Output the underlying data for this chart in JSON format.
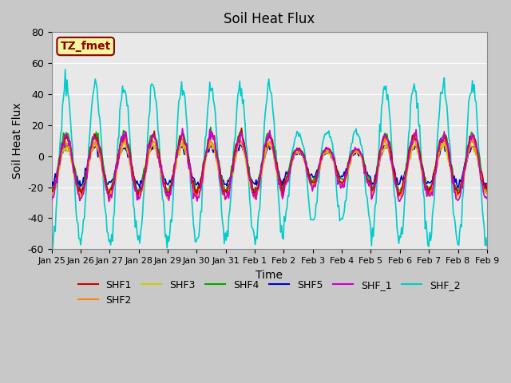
{
  "title": "Soil Heat Flux",
  "xlabel": "Time",
  "ylabel": "Soil Heat Flux",
  "ylim": [
    -60,
    80
  ],
  "yticks": [
    -60,
    -40,
    -20,
    0,
    20,
    40,
    60,
    80
  ],
  "fig_bg_color": "#c8c8c8",
  "plot_bg_color": "#e8e8e8",
  "annotation_text": "TZ_fmet",
  "annotation_bg": "#f5f5a0",
  "annotation_border": "#8b0000",
  "annotation_text_color": "#8b0000",
  "series_colors": {
    "SHF1": "#cc0000",
    "SHF2": "#ff8800",
    "SHF3": "#cccc00",
    "SHF4": "#00aa00",
    "SHF5": "#0000cc",
    "SHF_1": "#cc00cc",
    "SHF_2": "#00cccc"
  },
  "xtick_labels": [
    "Jan 25",
    "Jan 26",
    "Jan 27",
    "Jan 28",
    "Jan 29",
    "Jan 30",
    "Jan 31",
    "Feb 1",
    "Feb 2",
    "Feb 3",
    "Feb 4",
    "Feb 5",
    "Feb 6",
    "Feb 7",
    "Feb 8",
    "Feb 9"
  ],
  "xtick_positions": [
    0,
    1,
    2,
    3,
    4,
    5,
    6,
    7,
    8,
    9,
    10,
    11,
    12,
    13,
    14,
    15
  ],
  "n_points": 480,
  "seed": 42
}
